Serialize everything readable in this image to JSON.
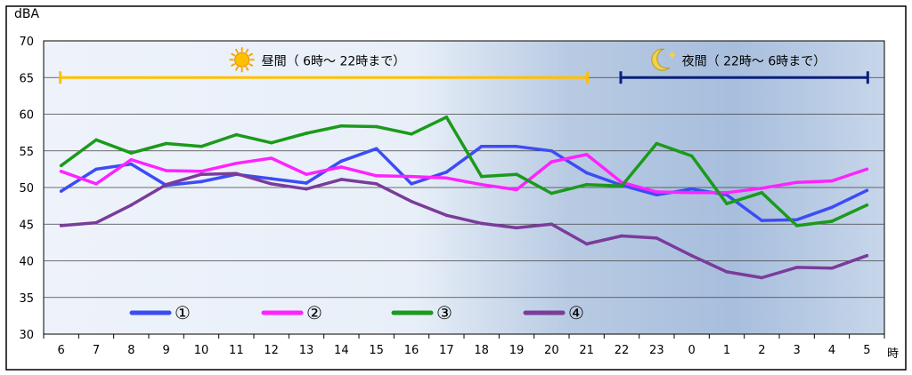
{
  "chart_data": {
    "type": "line",
    "y_unit": "dBA",
    "x_unit": "時",
    "ylim": [
      30,
      70
    ],
    "yticks": [
      30,
      35,
      40,
      45,
      50,
      55,
      60,
      65,
      70
    ],
    "grid": true,
    "legend_placement": "bottom-left",
    "categories": [
      "6",
      "7",
      "8",
      "9",
      "10",
      "11",
      "12",
      "13",
      "14",
      "15",
      "16",
      "17",
      "18",
      "19",
      "20",
      "21",
      "22",
      "23",
      "0",
      "1",
      "2",
      "3",
      "4",
      "5"
    ],
    "series": [
      {
        "name": "①",
        "color": "#3c4cf5",
        "values": [
          49.5,
          52.5,
          53.2,
          50.3,
          50.8,
          51.8,
          51.2,
          50.6,
          53.6,
          55.3,
          50.5,
          52.1,
          55.6,
          55.6,
          55.0,
          52.0,
          50.3,
          49.0,
          49.8,
          49.0,
          45.5,
          45.6,
          47.3,
          49.6
        ]
      },
      {
        "name": "②",
        "color": "#ff22ff",
        "values": [
          52.2,
          50.5,
          53.8,
          52.3,
          52.2,
          53.3,
          54.0,
          51.8,
          52.8,
          51.6,
          51.5,
          51.3,
          50.4,
          49.7,
          53.5,
          54.5,
          50.7,
          49.4,
          49.3,
          49.3,
          49.9,
          50.7,
          50.9,
          52.5
        ]
      },
      {
        "name": "③",
        "color": "#1b9a1b",
        "values": [
          53.0,
          56.5,
          54.7,
          56.0,
          55.6,
          57.2,
          56.1,
          57.4,
          58.4,
          58.3,
          57.3,
          59.6,
          51.5,
          51.8,
          49.2,
          50.4,
          50.2,
          56.0,
          54.3,
          47.8,
          49.3,
          44.8,
          45.4,
          47.6
        ]
      },
      {
        "name": "④",
        "color": "#7a3c9a",
        "values": [
          44.8,
          45.2,
          47.6,
          50.4,
          51.8,
          51.9,
          50.5,
          49.8,
          51.1,
          50.5,
          48.1,
          46.2,
          45.1,
          44.5,
          45.0,
          42.3,
          43.4,
          43.1,
          40.7,
          38.5,
          37.7,
          39.1,
          39.0,
          40.7
        ]
      }
    ],
    "annotations": [
      {
        "text": "昼間（ 6時～ 22時まで）",
        "icon": "sun-icon",
        "from": "6",
        "to": "21",
        "level": 65,
        "color": "#ffc000"
      },
      {
        "text": "夜間（ 22時～ 6時まで）",
        "icon": "moon-icon",
        "from": "22",
        "to": "5",
        "level": 65,
        "color": "#0b1f7a"
      }
    ]
  }
}
